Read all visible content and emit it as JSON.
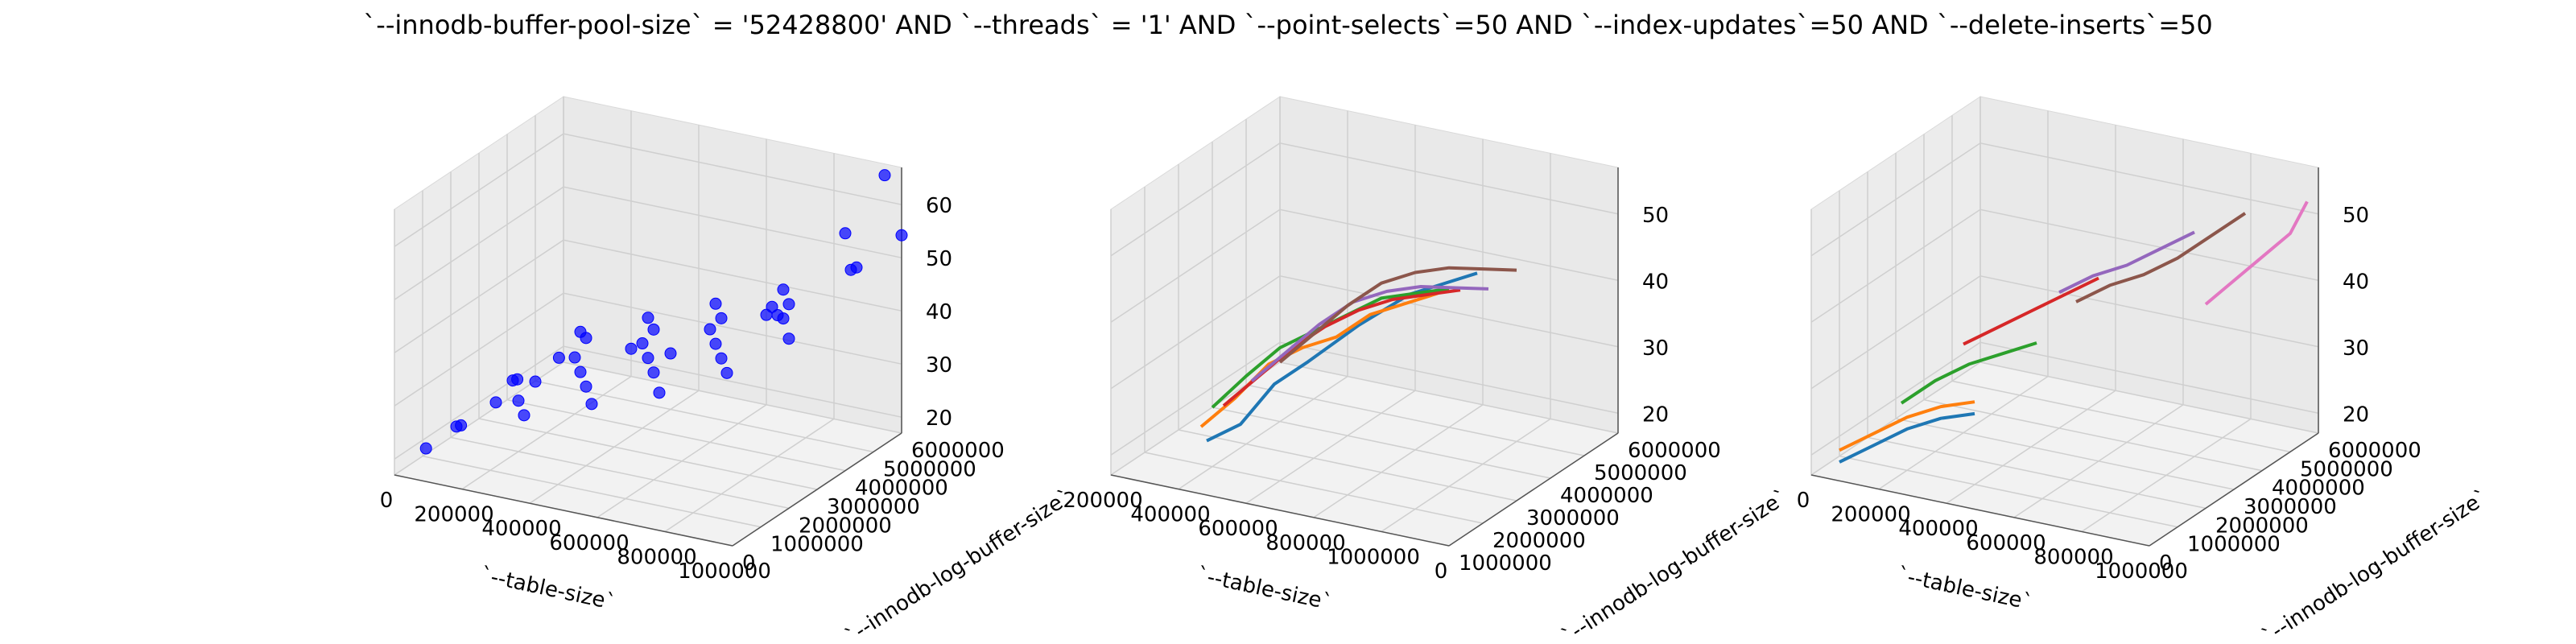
{
  "title": "`--innodb-buffer-pool-size` = '52428800' AND `--threads` = '1'  AND `--point-selects`=50 AND `--index-updates`=50 AND `--delete-inserts`=50",
  "chart_data": [
    {
      "type": "scatter3d",
      "xlabel": "`--table-size`",
      "ylabel": "`--innodb-log-buffer-size`",
      "xticks": [
        "0",
        "200000",
        "400000",
        "600000",
        "800000",
        "1000000"
      ],
      "yticks": [
        "0",
        "1000000",
        "2000000",
        "3000000",
        "4000000",
        "5000000",
        "6000000"
      ],
      "zticks": [
        "20",
        "30",
        "40",
        "50",
        "60"
      ],
      "xlim": [
        0,
        1000000
      ],
      "ylim": [
        0,
        6000000
      ],
      "zlim": [
        15,
        62
      ],
      "color": "#0000ff",
      "points": [
        [
          10000,
          1000000,
          16.5
        ],
        [
          30000,
          2000000,
          17.5
        ],
        [
          50000,
          3000000,
          18.5
        ],
        [
          30000,
          4000000,
          19
        ],
        [
          70000,
          5000000,
          20
        ],
        [
          50000,
          6000000,
          21
        ],
        [
          100000,
          1000000,
          21.5
        ],
        [
          100000,
          3000000,
          23
        ],
        [
          150000,
          5000000,
          24.5
        ],
        [
          200000,
          2000000,
          24
        ],
        [
          200000,
          4000000,
          25
        ],
        [
          250000,
          6000000,
          26
        ],
        [
          300000,
          1000000,
          26
        ],
        [
          300000,
          3000000,
          27
        ],
        [
          350000,
          5000000,
          28.5
        ],
        [
          400000,
          2000000,
          29
        ],
        [
          400000,
          4000000,
          30
        ],
        [
          450000,
          6000000,
          31
        ],
        [
          500000,
          1000000,
          30.5
        ],
        [
          500000,
          3000000,
          32
        ],
        [
          550000,
          5000000,
          33
        ],
        [
          600000,
          2000000,
          34
        ],
        [
          600000,
          4000000,
          35
        ],
        [
          650000,
          6000000,
          36
        ],
        [
          700000,
          1000000,
          35
        ],
        [
          700000,
          3000000,
          37
        ],
        [
          750000,
          5000000,
          38
        ],
        [
          800000,
          2000000,
          39
        ],
        [
          800000,
          4000000,
          40
        ],
        [
          850000,
          6000000,
          42
        ],
        [
          900000,
          1000000,
          41
        ],
        [
          900000,
          3000000,
          44
        ],
        [
          950000,
          5000000,
          47
        ],
        [
          1000000,
          2000000,
          45
        ],
        [
          1000000,
          6000000,
          50
        ],
        [
          250000,
          2000000,
          28
        ],
        [
          450000,
          3000000,
          33
        ],
        [
          650000,
          2000000,
          38
        ],
        [
          850000,
          3000000,
          44
        ],
        [
          950000,
          2000000,
          50
        ],
        [
          1000000,
          4000000,
          57
        ],
        [
          950000,
          6000000,
          60
        ]
      ]
    },
    {
      "type": "line3d",
      "xlabel": "`--table-size`",
      "ylabel": "`--innodb-log-buffer-size`",
      "xticks": [
        "200000",
        "400000",
        "600000",
        "800000",
        "1000000",
        "0"
      ],
      "yticks": [
        "1000000",
        "2000000",
        "3000000",
        "4000000",
        "5000000",
        "6000000"
      ],
      "zticks": [
        "20",
        "30",
        "40",
        "50"
      ],
      "xlim": [
        0,
        1000000
      ],
      "ylim": [
        0,
        6000000
      ],
      "zlim": [
        15,
        60
      ],
      "series": [
        {
          "color": "#1f77b4",
          "points": [
            [
              200000,
              1000000,
              20
            ],
            [
              300000,
              1000000,
              24
            ],
            [
              400000,
              1000000,
              32
            ],
            [
              500000,
              1000000,
              37
            ],
            [
              650000,
              1000000,
              45
            ],
            [
              800000,
              1000000,
              52
            ],
            [
              900000,
              1000000,
              55
            ],
            [
              1000000,
              1000000,
              58
            ]
          ]
        },
        {
          "color": "#ff7f0e",
          "points": [
            [
              100000,
              2000000,
              18
            ],
            [
              200000,
              2000000,
              24
            ],
            [
              300000,
              2000000,
              31
            ],
            [
              400000,
              2000000,
              35
            ],
            [
              500000,
              2000000,
              38
            ],
            [
              600000,
              2000000,
              43
            ],
            [
              700000,
              2000000,
              46
            ],
            [
              800000,
              2000000,
              49
            ]
          ]
        },
        {
          "color": "#2ca02c",
          "points": [
            [
              50000,
              3000000,
              17.5
            ],
            [
              150000,
              3000000,
              24
            ],
            [
              250000,
              3000000,
              30
            ],
            [
              350000,
              3000000,
              34
            ],
            [
              450000,
              3000000,
              38
            ],
            [
              550000,
              3000000,
              42
            ],
            [
              650000,
              3000000,
              44
            ],
            [
              750000,
              3000000,
              46
            ]
          ]
        },
        {
          "color": "#d62728",
          "points": [
            [
              0,
              4000000,
              14
            ],
            [
              100000,
              4000000,
              20
            ],
            [
              200000,
              4000000,
              26
            ],
            [
              300000,
              4000000,
              31
            ],
            [
              400000,
              4000000,
              35
            ],
            [
              500000,
              4000000,
              38
            ],
            [
              600000,
              4000000,
              40
            ],
            [
              700000,
              4000000,
              42
            ]
          ]
        },
        {
          "color": "#9467bd",
          "points": [
            [
              0,
              5000000,
              15
            ],
            [
              100000,
              5000000,
              21
            ],
            [
              200000,
              5000000,
              27
            ],
            [
              300000,
              5000000,
              32
            ],
            [
              400000,
              5000000,
              35
            ],
            [
              500000,
              5000000,
              37
            ],
            [
              600000,
              5000000,
              38
            ],
            [
              700000,
              5000000,
              39
            ]
          ]
        },
        {
          "color": "#8c564b",
          "points": [
            [
              0,
              6000000,
              15
            ],
            [
              100000,
              6000000,
              21
            ],
            [
              200000,
              6000000,
              27
            ],
            [
              300000,
              6000000,
              32
            ],
            [
              400000,
              6000000,
              35
            ],
            [
              500000,
              6000000,
              37
            ],
            [
              600000,
              6000000,
              38
            ],
            [
              700000,
              6000000,
              39
            ]
          ]
        }
      ]
    },
    {
      "type": "line3d",
      "xlabel": "`--table-size`",
      "ylabel": "`--innodb-log-buffer-size`",
      "xticks": [
        "0",
        "200000",
        "400000",
        "600000",
        "800000",
        "1000000"
      ],
      "yticks": [
        "0",
        "1000000",
        "2000000",
        "3000000",
        "4000000",
        "5000000",
        "6000000"
      ],
      "zticks": [
        "20",
        "30",
        "40",
        "50"
      ],
      "xlim": [
        0,
        1000000
      ],
      "ylim": [
        0,
        6000000
      ],
      "zlim": [
        15,
        60
      ],
      "series": [
        {
          "color": "#1f77b4",
          "points": [
            [
              0,
              1000000,
              14
            ],
            [
              100000,
              1000000,
              18
            ],
            [
              200000,
              1000000,
              22
            ],
            [
              300000,
              1000000,
              25
            ],
            [
              400000,
              1000000,
              27
            ]
          ]
        },
        {
          "color": "#ff7f0e",
          "points": [
            [
              0,
              1000000,
              16
            ],
            [
              100000,
              1000000,
              20
            ],
            [
              200000,
              1000000,
              24
            ],
            [
              300000,
              1000000,
              27
            ],
            [
              400000,
              1000000,
              29
            ]
          ]
        },
        {
          "color": "#2ca02c",
          "points": [
            [
              100000,
              2000000,
              22
            ],
            [
              200000,
              2000000,
              27
            ],
            [
              300000,
              2000000,
              31
            ],
            [
              400000,
              2000000,
              34
            ],
            [
              500000,
              2000000,
              37
            ]
          ]
        },
        {
          "color": "#d62728",
          "points": [
            [
              200000,
              3000000,
              30
            ],
            [
              300000,
              3000000,
              34
            ],
            [
              400000,
              3000000,
              38
            ],
            [
              500000,
              3000000,
              42
            ],
            [
              600000,
              3000000,
              46
            ]
          ]
        },
        {
          "color": "#9467bd",
          "points": [
            [
              400000,
              4000000,
              38
            ],
            [
              500000,
              4000000,
              42
            ],
            [
              600000,
              4000000,
              45
            ],
            [
              700000,
              4000000,
              49
            ],
            [
              800000,
              4000000,
              53
            ]
          ]
        },
        {
          "color": "#8c564b",
          "points": [
            [
              450000,
              4000000,
              37
            ],
            [
              550000,
              4000000,
              41
            ],
            [
              650000,
              4000000,
              44
            ],
            [
              750000,
              4000000,
              48
            ],
            [
              850000,
              4000000,
              53
            ],
            [
              950000,
              4000000,
              58
            ]
          ]
        },
        {
          "color": "#e377c2",
          "points": [
            [
              750000,
              5000000,
              37
            ],
            [
              800000,
              5000000,
              40
            ],
            [
              900000,
              5000000,
              46
            ],
            [
              1000000,
              5000000,
              52
            ],
            [
              1050000,
              5000000,
              58
            ]
          ]
        }
      ]
    }
  ]
}
